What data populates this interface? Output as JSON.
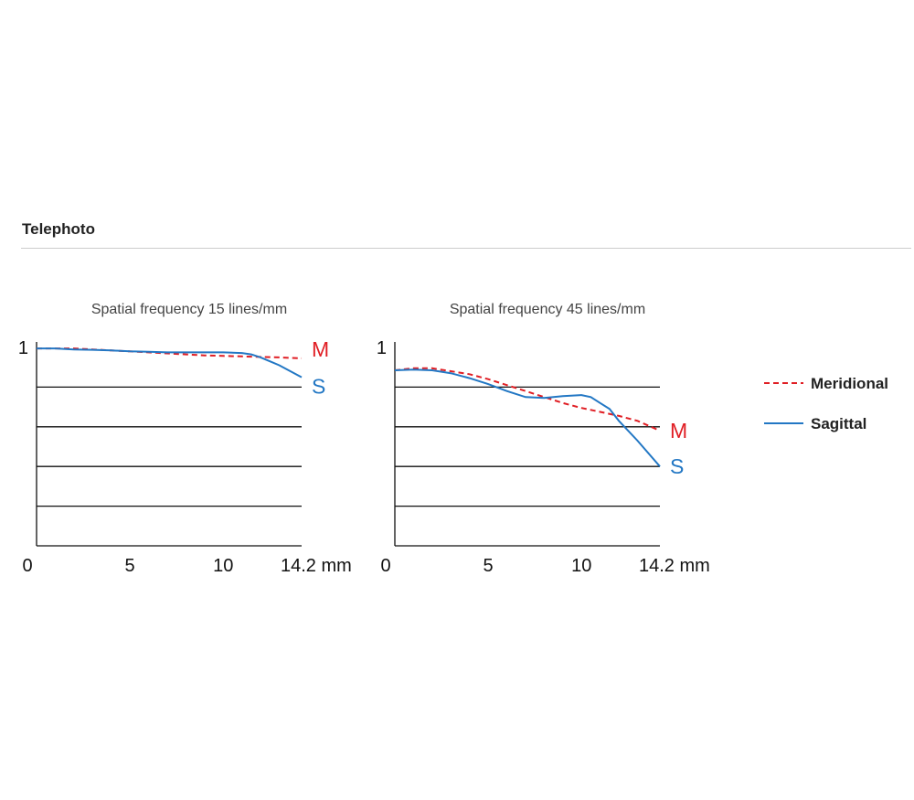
{
  "section": {
    "title": "Telephoto"
  },
  "colors": {
    "meridional": "#e01e24",
    "sagittal": "#2277c4",
    "grid": "#111111"
  },
  "legend": [
    {
      "name": "Meridional",
      "style": "dashed",
      "color": "#e01e24"
    },
    {
      "name": "Sagittal",
      "style": "solid",
      "color": "#2277c4"
    }
  ],
  "chart_data": [
    {
      "type": "line",
      "title": "Spatial frequency 15 lines/mm",
      "xlim": [
        0,
        14.2
      ],
      "ylim": [
        0,
        1
      ],
      "grid_y": [
        0.2,
        0.4,
        0.6,
        0.8
      ],
      "y_tick_labels": [
        {
          "value": 1,
          "label": "1"
        }
      ],
      "x_tick_labels": [
        {
          "value": 0,
          "label": "0"
        },
        {
          "value": 5,
          "label": "5"
        },
        {
          "value": 10,
          "label": "10"
        },
        {
          "value": 14.2,
          "label": "14.2 mm"
        }
      ],
      "series": [
        {
          "name": "Meridional",
          "marker": "M",
          "style": "dashed",
          "x": [
            0,
            1,
            2,
            3,
            4,
            5,
            6,
            7,
            8,
            9,
            10,
            11,
            12,
            13,
            14.2
          ],
          "y": [
            0.995,
            0.995,
            0.995,
            0.99,
            0.985,
            0.98,
            0.975,
            0.97,
            0.965,
            0.96,
            0.957,
            0.955,
            0.952,
            0.95,
            0.945
          ]
        },
        {
          "name": "Sagittal",
          "marker": "S",
          "style": "solid",
          "x": [
            0,
            1,
            2,
            3,
            4,
            5,
            6,
            7,
            8,
            9,
            10,
            11,
            11.5,
            12,
            12.5,
            13,
            14.2
          ],
          "y": [
            0.995,
            0.995,
            0.99,
            0.988,
            0.985,
            0.98,
            0.978,
            0.975,
            0.975,
            0.975,
            0.975,
            0.972,
            0.965,
            0.95,
            0.93,
            0.91,
            0.85
          ]
        }
      ]
    },
    {
      "type": "line",
      "title": "Spatial frequency 45 lines/mm",
      "xlim": [
        0,
        14.2
      ],
      "ylim": [
        0,
        1
      ],
      "grid_y": [
        0.2,
        0.4,
        0.6,
        0.8
      ],
      "y_tick_labels": [
        {
          "value": 1,
          "label": "1"
        }
      ],
      "x_tick_labels": [
        {
          "value": 0,
          "label": "0"
        },
        {
          "value": 5,
          "label": "5"
        },
        {
          "value": 10,
          "label": "10"
        },
        {
          "value": 14.2,
          "label": "14.2 mm"
        }
      ],
      "series": [
        {
          "name": "Meridional",
          "marker": "M",
          "style": "dashed",
          "x": [
            0,
            1,
            2,
            3,
            4,
            5,
            6,
            7,
            8,
            9,
            10,
            11,
            12,
            13,
            14.2
          ],
          "y": [
            0.885,
            0.895,
            0.895,
            0.88,
            0.865,
            0.84,
            0.81,
            0.78,
            0.75,
            0.72,
            0.695,
            0.675,
            0.655,
            0.63,
            0.58
          ]
        },
        {
          "name": "Sagittal",
          "marker": "S",
          "style": "solid",
          "x": [
            0,
            1,
            2,
            3,
            4,
            5,
            6,
            7,
            8,
            9,
            10,
            10.5,
            11,
            11.5,
            12,
            13,
            14.2
          ],
          "y": [
            0.885,
            0.888,
            0.885,
            0.87,
            0.845,
            0.815,
            0.78,
            0.75,
            0.745,
            0.755,
            0.76,
            0.75,
            0.72,
            0.69,
            0.63,
            0.53,
            0.4
          ]
        }
      ]
    }
  ]
}
